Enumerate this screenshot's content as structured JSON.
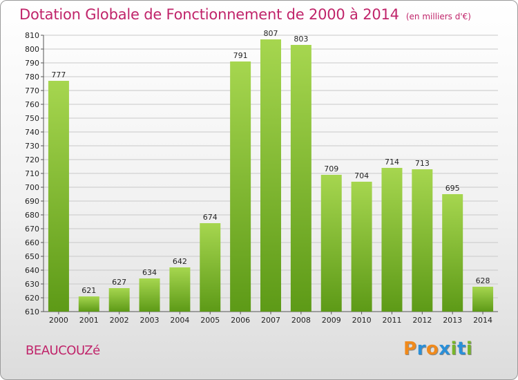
{
  "title": "Dotation Globale de Fonctionnement de 2000 à 2014",
  "unit_note": "(en milliers d'€)",
  "place_name": "BEAUCOUZé",
  "logo_text": "Proxiti",
  "colors": {
    "title": "#c0246a",
    "bar_top": "#a6d64f",
    "bar_bottom": "#5d9a17",
    "grid": "#c8c8c8",
    "logo_letters": [
      "#f08a1c",
      "#2a8fd8",
      "#f08a1c",
      "#2a8fd8",
      "#78b52a",
      "#2a8fd8",
      "#78b52a"
    ]
  },
  "chart_data": {
    "type": "bar",
    "title": "Dotation Globale de Fonctionnement de 2000 à 2014",
    "subtitle": "(en milliers d'€)",
    "xlabel": "",
    "ylabel": "",
    "categories": [
      "2000",
      "2001",
      "2002",
      "2003",
      "2004",
      "2005",
      "2006",
      "2007",
      "2008",
      "2009",
      "2010",
      "2011",
      "2012",
      "2013",
      "2014"
    ],
    "values": [
      777,
      621,
      627,
      634,
      642,
      674,
      791,
      807,
      803,
      709,
      704,
      714,
      713,
      695,
      628
    ],
    "ylim": [
      610,
      810
    ],
    "ytick_step": 10,
    "grid": true,
    "legend": "none",
    "data_labels": true
  }
}
